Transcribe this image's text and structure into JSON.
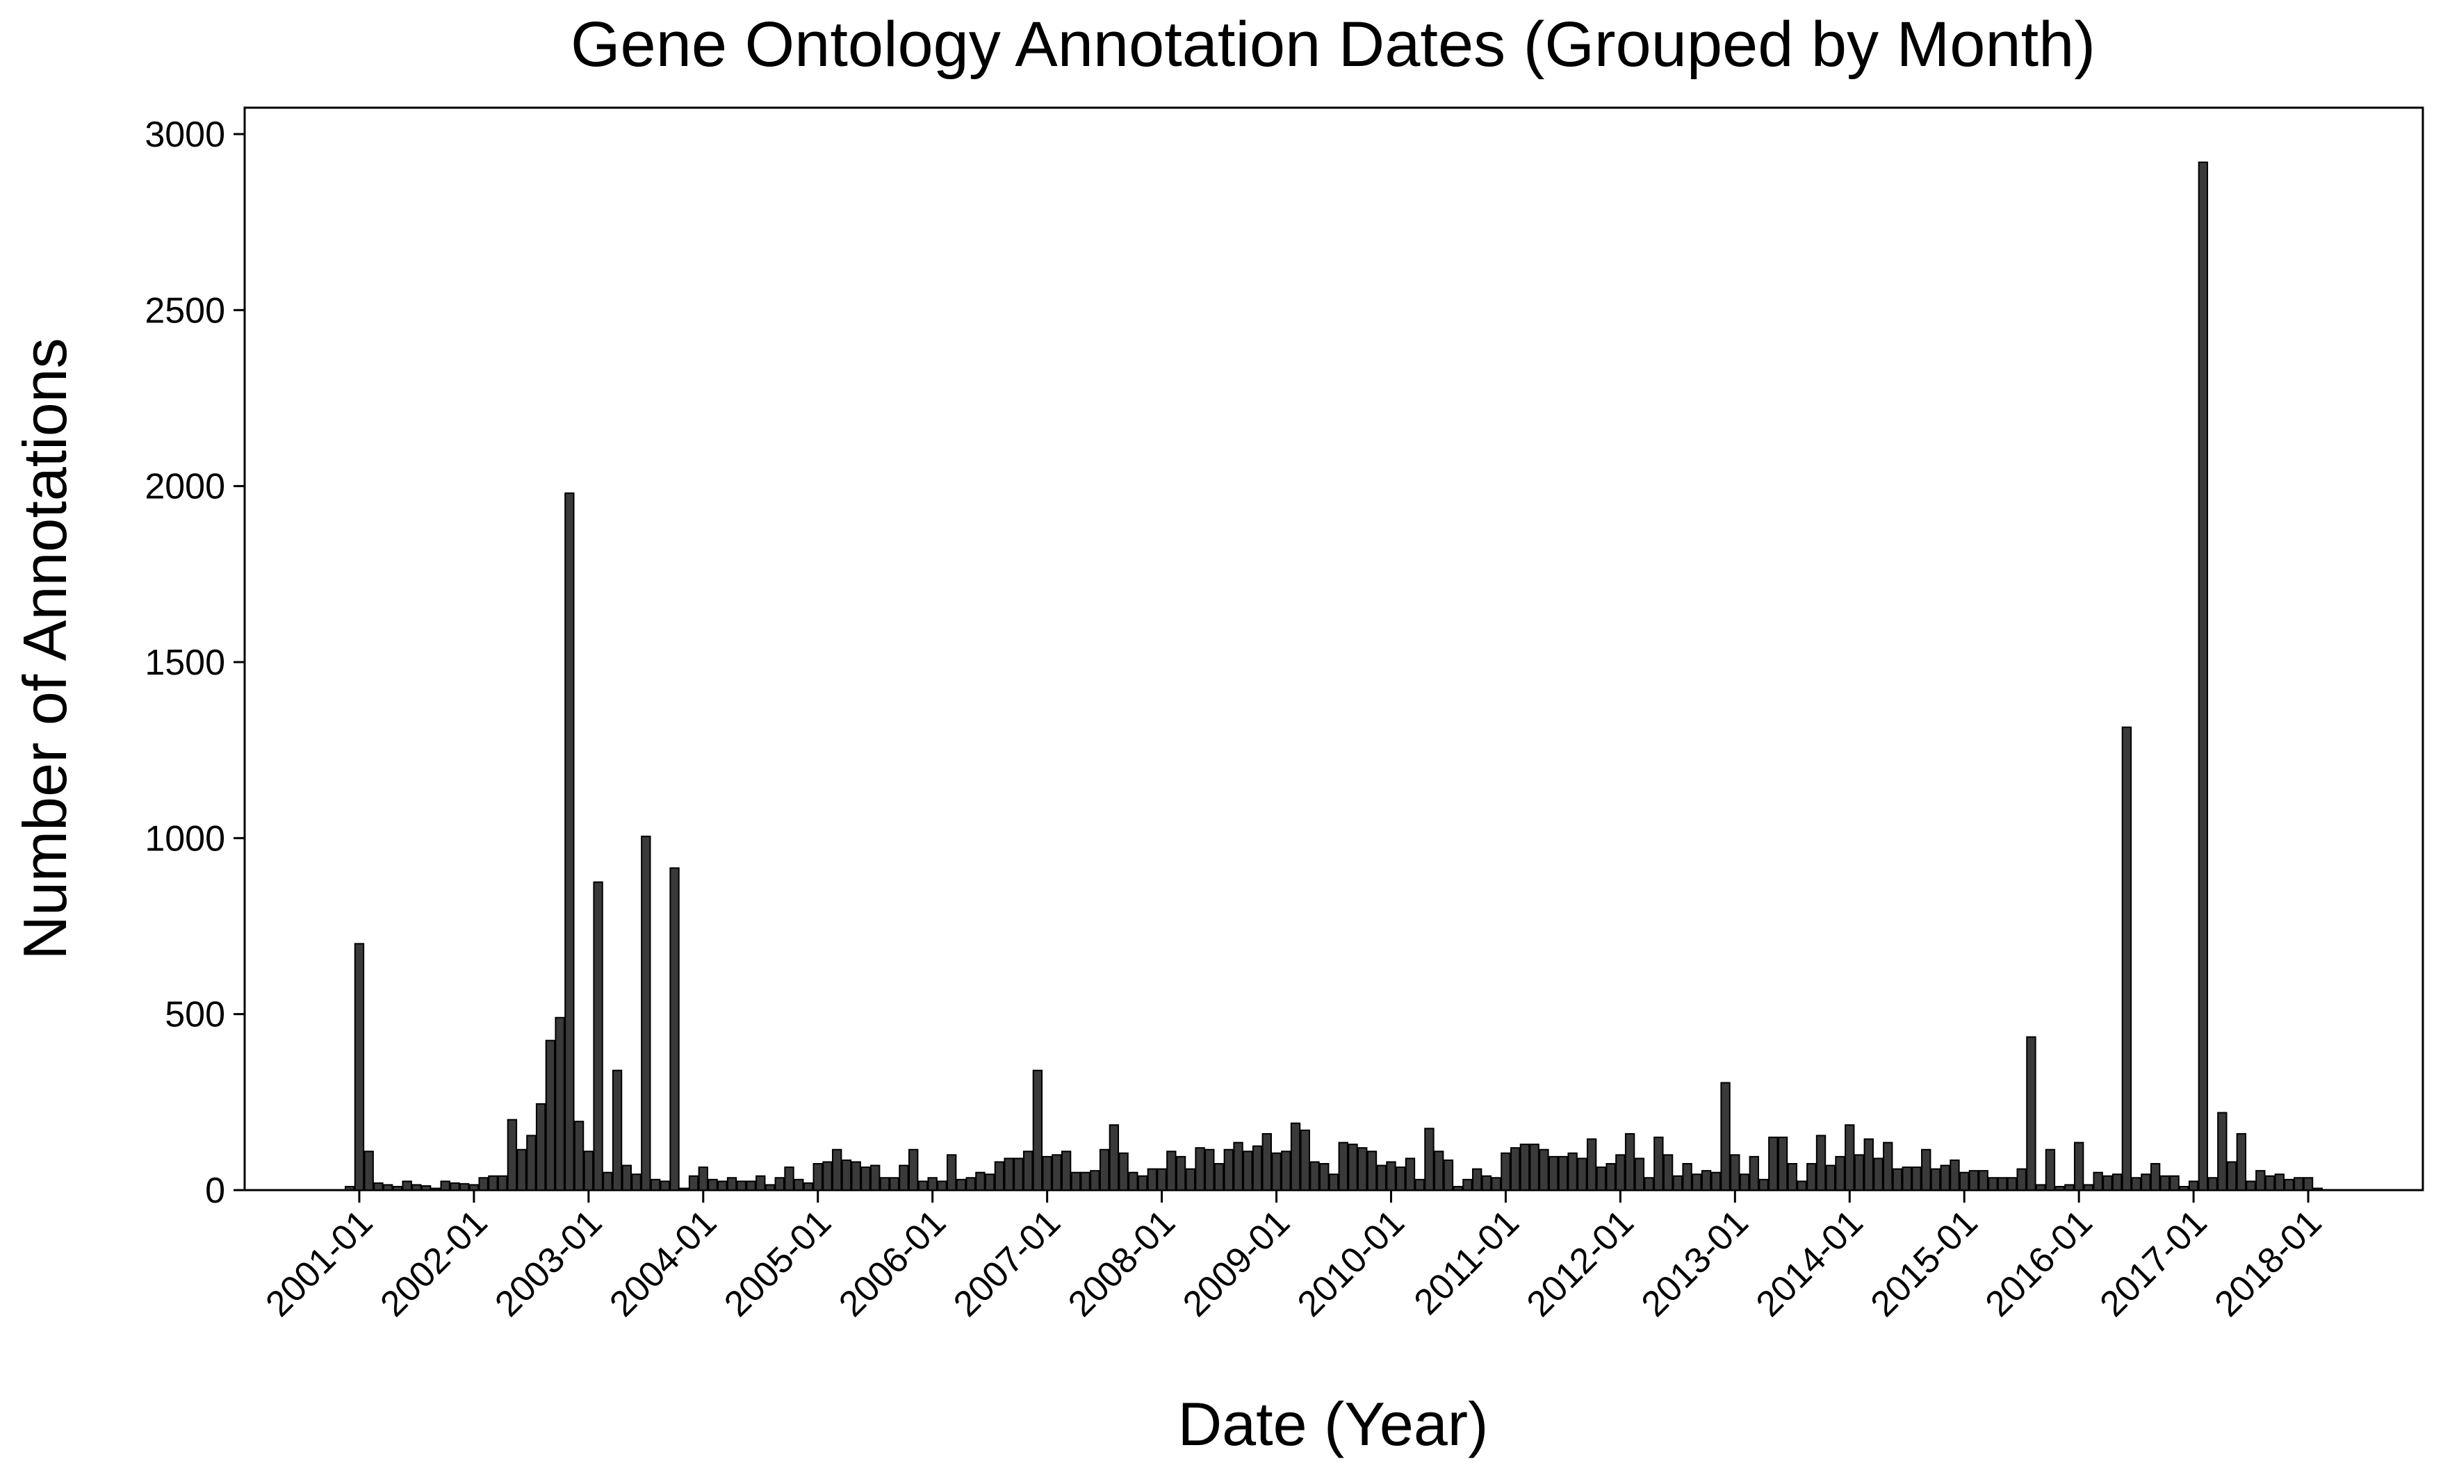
{
  "chart_data": {
    "type": "bar",
    "title": "Gene Ontology Annotation Dates (Grouped by Month)",
    "x_label": "Date (Year)",
    "y_label": "Number of Annotations",
    "color": "#3a3a3a",
    "x": [
      "2000-12",
      "2001-01",
      "2001-02",
      "2001-03",
      "2001-04",
      "2001-05",
      "2001-06",
      "2001-07",
      "2001-08",
      "2001-09",
      "2001-10",
      "2001-11",
      "2001-12",
      "2002-01",
      "2002-02",
      "2002-03",
      "2002-04",
      "2002-05",
      "2002-06",
      "2002-07",
      "2002-08",
      "2002-09",
      "2002-10",
      "2002-11",
      "2002-12",
      "2003-01",
      "2003-02",
      "2003-03",
      "2003-04",
      "2003-05",
      "2003-06",
      "2003-07",
      "2003-08",
      "2003-09",
      "2003-10",
      "2003-11",
      "2003-12",
      "2004-01",
      "2004-02",
      "2004-03",
      "2004-04",
      "2004-05",
      "2004-06",
      "2004-07",
      "2004-08",
      "2004-09",
      "2004-10",
      "2004-11",
      "2004-12",
      "2005-01",
      "2005-02",
      "2005-03",
      "2005-04",
      "2005-05",
      "2005-06",
      "2005-07",
      "2005-08",
      "2005-09",
      "2005-10",
      "2005-11",
      "2005-12",
      "2006-01",
      "2006-02",
      "2006-03",
      "2006-04",
      "2006-05",
      "2006-06",
      "2006-07",
      "2006-08",
      "2006-09",
      "2006-10",
      "2006-11",
      "2006-12",
      "2007-01",
      "2007-02",
      "2007-03",
      "2007-04",
      "2007-05",
      "2007-06",
      "2007-07",
      "2007-08",
      "2007-09",
      "2007-10",
      "2007-11",
      "2007-12",
      "2008-01",
      "2008-02",
      "2008-03",
      "2008-04",
      "2008-05",
      "2008-06",
      "2008-07",
      "2008-08",
      "2008-09",
      "2008-10",
      "2008-11",
      "2008-12",
      "2009-01",
      "2009-02",
      "2009-03",
      "2009-04",
      "2009-05",
      "2009-06",
      "2009-07",
      "2009-08",
      "2009-09",
      "2009-10",
      "2009-11",
      "2009-12",
      "2010-01",
      "2010-02",
      "2010-03",
      "2010-04",
      "2010-05",
      "2010-06",
      "2010-07",
      "2010-08",
      "2010-09",
      "2010-10",
      "2010-11",
      "2010-12",
      "2011-01",
      "2011-02",
      "2011-03",
      "2011-04",
      "2011-05",
      "2011-06",
      "2011-07",
      "2011-08",
      "2011-09",
      "2011-10",
      "2011-11",
      "2011-12",
      "2012-01",
      "2012-02",
      "2012-03",
      "2012-04",
      "2012-05",
      "2012-06",
      "2012-07",
      "2012-08",
      "2012-09",
      "2012-10",
      "2012-11",
      "2012-12",
      "2013-01",
      "2013-02",
      "2013-03",
      "2013-04",
      "2013-05",
      "2013-06",
      "2013-07",
      "2013-08",
      "2013-09",
      "2013-10",
      "2013-11",
      "2013-12",
      "2014-01",
      "2014-02",
      "2014-03",
      "2014-04",
      "2014-05",
      "2014-06",
      "2014-07",
      "2014-08",
      "2014-09",
      "2014-10",
      "2014-11",
      "2014-12",
      "2015-01",
      "2015-02",
      "2015-03",
      "2015-04",
      "2015-05",
      "2015-06",
      "2015-07",
      "2015-08",
      "2015-09",
      "2015-10",
      "2015-11",
      "2015-12",
      "2016-01",
      "2016-02",
      "2016-03",
      "2016-04",
      "2016-05",
      "2016-06",
      "2016-07",
      "2016-08",
      "2016-09",
      "2016-10",
      "2016-11",
      "2016-12",
      "2017-01",
      "2017-02",
      "2017-03",
      "2017-04",
      "2017-05",
      "2017-06",
      "2017-07",
      "2017-08",
      "2017-09",
      "2017-10",
      "2017-11",
      "2017-12",
      "2018-01",
      "2018-02"
    ],
    "values": [
      10,
      700,
      110,
      20,
      15,
      10,
      25,
      15,
      12,
      5,
      25,
      20,
      18,
      15,
      35,
      40,
      40,
      200,
      115,
      155,
      245,
      425,
      490,
      1980,
      195,
      110,
      875,
      50,
      340,
      70,
      45,
      1005,
      30,
      25,
      915,
      5,
      40,
      65,
      30,
      25,
      35,
      25,
      25,
      40,
      15,
      35,
      65,
      30,
      20,
      75,
      80,
      115,
      85,
      80,
      65,
      70,
      35,
      35,
      70,
      115,
      25,
      35,
      25,
      100,
      30,
      35,
      50,
      45,
      80,
      90,
      90,
      110,
      340,
      95,
      100,
      110,
      50,
      50,
      55,
      115,
      185,
      105,
      50,
      40,
      60,
      60,
      110,
      95,
      60,
      120,
      115,
      75,
      115,
      135,
      110,
      125,
      160,
      105,
      110,
      190,
      170,
      80,
      75,
      45,
      135,
      130,
      120,
      110,
      70,
      80,
      65,
      90,
      30,
      175,
      110,
      85,
      10,
      30,
      60,
      40,
      35,
      105,
      120,
      130,
      130,
      115,
      95,
      95,
      105,
      90,
      145,
      65,
      75,
      100,
      160,
      90,
      35,
      150,
      100,
      40,
      75,
      45,
      55,
      50,
      305,
      100,
      45,
      95,
      30,
      150,
      150,
      75,
      25,
      75,
      155,
      70,
      95,
      185,
      100,
      145,
      90,
      135,
      60,
      65,
      65,
      115,
      60,
      70,
      85,
      50,
      55,
      55,
      35,
      35,
      35,
      60,
      435,
      15,
      115,
      10,
      15,
      135,
      15,
      50,
      40,
      45,
      1315,
      35,
      45,
      75,
      40,
      40,
      10,
      25,
      2920,
      35,
      220,
      80,
      160,
      25,
      55,
      40,
      45,
      30,
      35,
      35,
      5
    ],
    "xlim": [
      "2000-01",
      "2019-01"
    ],
    "xticks": [
      "2001-01",
      "2002-01",
      "2003-01",
      "2004-01",
      "2005-01",
      "2006-01",
      "2007-01",
      "2008-01",
      "2009-01",
      "2010-01",
      "2011-01",
      "2012-01",
      "2013-01",
      "2014-01",
      "2015-01",
      "2016-01",
      "2017-01",
      "2018-01"
    ],
    "ylim": [
      0,
      3075
    ],
    "yticks": [
      0,
      500,
      1000,
      1500,
      2000,
      2500,
      3000
    ],
    "grid": false
  }
}
